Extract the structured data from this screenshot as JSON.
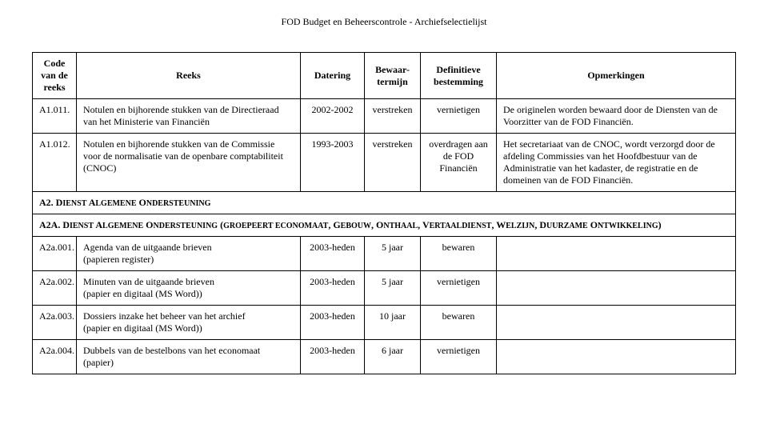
{
  "header": "FOD Budget en Beheerscontrole - Archiefselectielijst",
  "columns": {
    "code": "Code van de reeks",
    "reeks": "Reeks",
    "datering": "Datering",
    "bewaar": "Bewaar-termijn",
    "bestemming": "Definitieve bestemming",
    "opmerk": "Opmerkingen"
  },
  "rows": [
    {
      "code": "A1.011.",
      "reeks": "Notulen en bijhorende stukken van de Directieraad van het Ministerie van Financiën",
      "datering": "2002-2002",
      "bewaar": "verstreken",
      "bestemming": "vernietigen",
      "opmerk": "De originelen worden bewaard door de Diensten van de Voorzitter van de FOD Financiën."
    },
    {
      "code": "A1.012.",
      "reeks": "Notulen en bijhorende stukken van de Commissie voor de normalisatie van de openbare comptabiliteit (CNOC)",
      "datering": "1993-2003",
      "bewaar": "verstreken",
      "bestemming": "overdragen aan de FOD Financiën",
      "opmerk": "Het secretariaat van de CNOC, wordt verzorgd door de afdeling Commissies van het Hoofdbestuur van de Administratie van het kadaster, de registratie en de domeinen van de FOD Financiën."
    }
  ],
  "section_a2": {
    "pre": "A2. D",
    "sc": "IENST ",
    "pre2": "A",
    "sc2": "LGEMENE ",
    "pre3": "O",
    "sc3": "NDERSTEUNING"
  },
  "section_a2a": "A2A. DIENST ALGEMENE ONDERSTEUNING (GROEPEERT ECONOMAAT, GEBOUW, ONTHAAL, VERTAALDIENST, WELZIJN, DUURZAME ONTWIKKELING)",
  "rows2": [
    {
      "code": "A2a.001.",
      "reeks": "Agenda van de uitgaande brieven\n(papieren register)",
      "datering": "2003-heden",
      "bewaar": "5 jaar",
      "bestemming": "bewaren",
      "opmerk": ""
    },
    {
      "code": "A2a.002.",
      "reeks": "Minuten van de uitgaande brieven\n(papier en digitaal (MS Word))",
      "datering": "2003-heden",
      "bewaar": "5 jaar",
      "bestemming": "vernietigen",
      "opmerk": ""
    },
    {
      "code": "A2a.003.",
      "reeks": "Dossiers inzake het beheer van het archief\n(papier en digitaal (MS Word))",
      "datering": "2003-heden",
      "bewaar": "10 jaar",
      "bestemming": "bewaren",
      "opmerk": ""
    },
    {
      "code": "A2a.004.",
      "reeks": "Dubbels van de bestelbons van het economaat\n(papier)",
      "datering": "2003-heden",
      "bewaar": "6 jaar",
      "bestemming": "vernietigen",
      "opmerk": ""
    }
  ]
}
